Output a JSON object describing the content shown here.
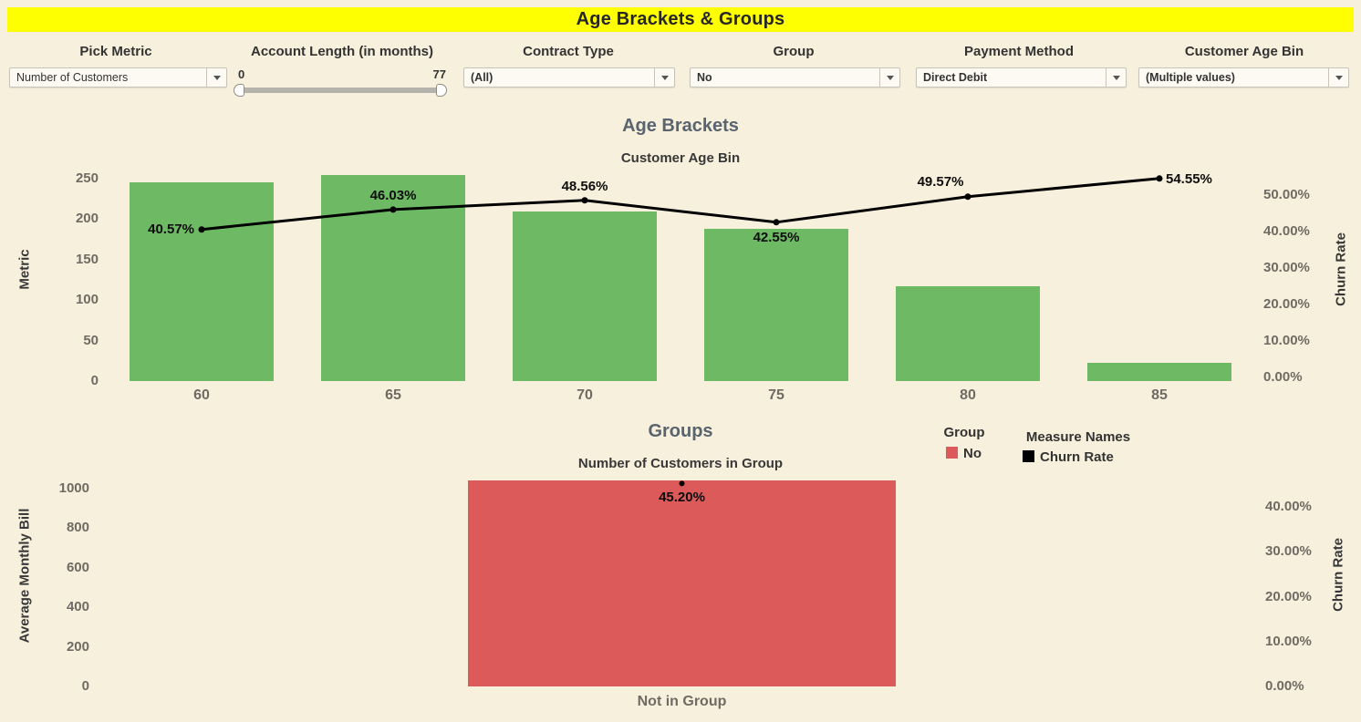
{
  "banner": {
    "title": "Age Brackets & Groups"
  },
  "colors": {
    "background": "#f7f0dc",
    "banner_bg": "#feff00",
    "bar_green": "#6eb964",
    "bar_red": "#dd5a5a",
    "line_black": "#000000",
    "axis_text": "#6f6b64",
    "title_text": "#5a646e"
  },
  "filters": [
    {
      "label": "Pick Metric",
      "control": "dropdown",
      "value": "Number of Customers"
    },
    {
      "label": "Account Length (in months)",
      "control": "range-slider",
      "min_label": "0",
      "max_label": "77"
    },
    {
      "label": "Contract Type",
      "control": "dropdown",
      "value": "(All)"
    },
    {
      "label": "Group",
      "control": "dropdown",
      "value": "No"
    },
    {
      "label": "Payment Method",
      "control": "dropdown",
      "value": "Direct Debit"
    },
    {
      "label": "Customer Age Bin",
      "control": "dropdown",
      "value": "(Multiple values)"
    }
  ],
  "legend": {
    "group": {
      "title": "Group",
      "items": [
        {
          "label": "No",
          "color": "#dd5a5a"
        }
      ]
    },
    "measures": {
      "title": "Measure Names",
      "items": [
        {
          "label": "Churn Rate",
          "color": "#000000"
        }
      ]
    }
  },
  "chart_data": [
    {
      "type": "bar+line dual-axis",
      "title": "Age Brackets",
      "subtitle": "Customer Age Bin",
      "categories": [
        "60",
        "65",
        "70",
        "75",
        "80",
        "85"
      ],
      "series": [
        {
          "name": "Number of Customers",
          "mark": "bar",
          "axis": "left",
          "color": "#6eb964",
          "values": [
            246,
            254,
            209,
            188,
            117,
            22
          ]
        },
        {
          "name": "Churn Rate",
          "mark": "line",
          "axis": "right",
          "color": "#000000",
          "values": [
            40.57,
            46.03,
            48.56,
            42.55,
            49.57,
            54.55
          ],
          "point_labels": [
            "40.57%",
            "46.03%",
            "48.56%",
            "42.55%",
            "49.57%",
            "54.55%"
          ]
        }
      ],
      "left_axis": {
        "title": "Metric",
        "range": [
          0,
          255
        ],
        "ticks": [
          {
            "value": 0,
            "label": "0"
          },
          {
            "value": 50,
            "label": "50"
          },
          {
            "value": 100,
            "label": "100"
          },
          {
            "value": 150,
            "label": "150"
          },
          {
            "value": 200,
            "label": "200"
          },
          {
            "value": 250,
            "label": "250"
          }
        ]
      },
      "right_axis": {
        "title": "Churn Rate",
        "range": [
          0,
          56
        ],
        "ticks": [
          {
            "value": 0,
            "label": "0.00%"
          },
          {
            "value": 10,
            "label": "10.00%"
          },
          {
            "value": 20,
            "label": "20.00%"
          },
          {
            "value": 30,
            "label": "30.00%"
          },
          {
            "value": 40,
            "label": "40.00%"
          },
          {
            "value": 50,
            "label": "50.00%"
          }
        ]
      },
      "grid": false,
      "legend_position": "right"
    },
    {
      "type": "bar+point dual-axis",
      "title": "Groups",
      "subtitle": "Number of Customers in Group",
      "categories": [
        "Not in Group"
      ],
      "series": [
        {
          "name": "Number of Customers in Group",
          "mark": "bar",
          "axis": "left",
          "color": "#dd5a5a",
          "values": [
            1040
          ]
        },
        {
          "name": "Churn Rate",
          "mark": "point",
          "axis": "right",
          "color": "#000000",
          "values": [
            45.2
          ],
          "point_labels": [
            "45.20%"
          ]
        }
      ],
      "left_axis": {
        "title": "Average Monthly Bill",
        "range": [
          0,
          1045
        ],
        "ticks": [
          {
            "value": 0,
            "label": "0"
          },
          {
            "value": 200,
            "label": "200"
          },
          {
            "value": 400,
            "label": "400"
          },
          {
            "value": 600,
            "label": "600"
          },
          {
            "value": 800,
            "label": "800"
          },
          {
            "value": 1000,
            "label": "1000"
          }
        ]
      },
      "right_axis": {
        "title": "Churn Rate",
        "range": [
          0,
          46
        ],
        "ticks": [
          {
            "value": 0,
            "label": "0.00%"
          },
          {
            "value": 10,
            "label": "10.00%"
          },
          {
            "value": 20,
            "label": "20.00%"
          },
          {
            "value": 30,
            "label": "30.00%"
          },
          {
            "value": 40,
            "label": "40.00%"
          }
        ]
      },
      "grid": false
    }
  ]
}
